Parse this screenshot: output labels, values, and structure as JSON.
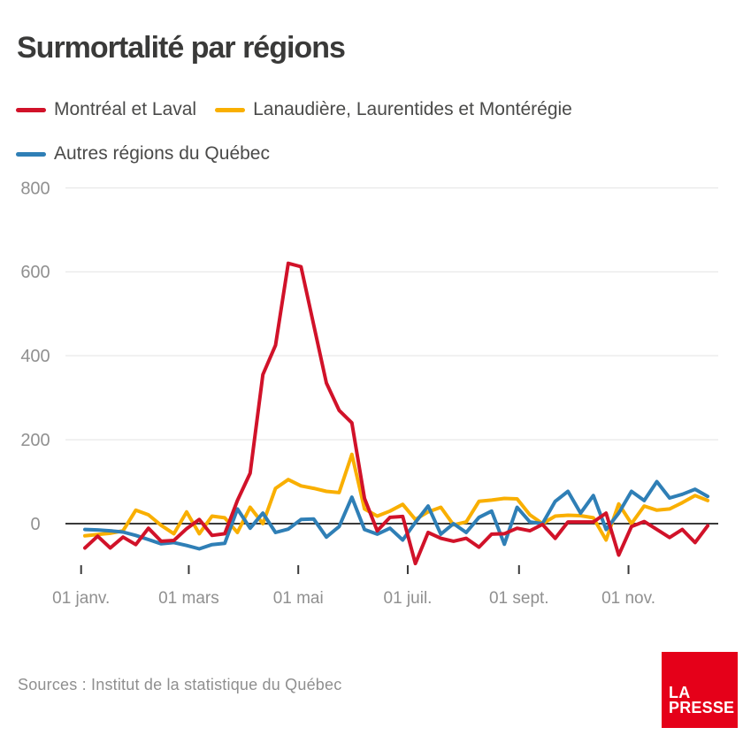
{
  "title": "Surmortalité par régions",
  "chart_data": {
    "type": "line",
    "title": "Surmortalité par régions",
    "x_description": "Semaines de l'année (janvier à décembre), 50 points hebdomadaires",
    "x_ticks": [
      {
        "label": "01 janv.",
        "day": 0
      },
      {
        "label": "01 mars",
        "day": 60
      },
      {
        "label": "01 mai",
        "day": 121
      },
      {
        "label": "01 juil.",
        "day": 182
      },
      {
        "label": "01 sept.",
        "day": 244
      },
      {
        "label": "01 nov.",
        "day": 305
      }
    ],
    "y_ticks": [
      0,
      200,
      400,
      600,
      800
    ],
    "ylim": [
      -120,
      840
    ],
    "grid": "horizontal",
    "zero_line": true,
    "legend_position": "top-left",
    "series": [
      {
        "name": "Montréal et Laval",
        "color": "#d11229",
        "values": [
          -58,
          -30,
          -58,
          -32,
          -50,
          -11,
          -42,
          -40,
          -12,
          10,
          -28,
          -24,
          55,
          120,
          355,
          425,
          620,
          612,
          473,
          335,
          270,
          240,
          60,
          -17,
          15,
          17,
          -95,
          -21,
          -35,
          -42,
          -35,
          -56,
          -25,
          -24,
          -11,
          -17,
          -2,
          -35,
          4,
          4,
          4,
          25,
          -75,
          -7,
          5,
          -14,
          -33,
          -14,
          -45,
          -5
        ]
      },
      {
        "name": "Lanaudière, Laurentides et Montérégie",
        "color": "#f9af00",
        "values": [
          -29,
          -26,
          -23,
          -17,
          32,
          21,
          -4,
          -24,
          28,
          -24,
          18,
          14,
          -21,
          39,
          0,
          84,
          105,
          90,
          84,
          77,
          74,
          165,
          35,
          18,
          30,
          46,
          10,
          28,
          39,
          -3,
          4,
          53,
          56,
          60,
          59,
          21,
          0,
          18,
          20,
          19,
          14,
          -39,
          47,
          0,
          42,
          32,
          35,
          50,
          67,
          55
        ]
      },
      {
        "name": "Autres régions du Québec",
        "color": "#2f7fb6",
        "values": [
          -14,
          -15,
          -17,
          -20,
          -28,
          -38,
          -48,
          -45,
          -52,
          -60,
          -50,
          -47,
          35,
          -11,
          25,
          -21,
          -13,
          10,
          11,
          -32,
          -7,
          63,
          -14,
          -25,
          -11,
          -39,
          3,
          42,
          -25,
          0,
          -21,
          15,
          30,
          -49,
          39,
          4,
          0,
          53,
          77,
          25,
          67,
          -14,
          25,
          77,
          55,
          100,
          61,
          70,
          82,
          65
        ]
      }
    ],
    "draw_order": [
      1,
      2,
      0
    ]
  },
  "footer": {
    "source": "Sources : Institut de la statistique du Québec",
    "logo": {
      "line1": "LA",
      "line2": "PRESSE"
    }
  },
  "colors": {
    "background": "#ffffff",
    "title_text": "#3a3a39",
    "legend_text": "#4a4a49",
    "grid": "#e3e3e3",
    "zero_line": "#3a3a3a",
    "tick_mark": "#3a3a3a",
    "axis_text": "#909090",
    "source_text": "#8f8f8f",
    "logo_bg": "#e50019",
    "logo_text": "#ffffff"
  }
}
